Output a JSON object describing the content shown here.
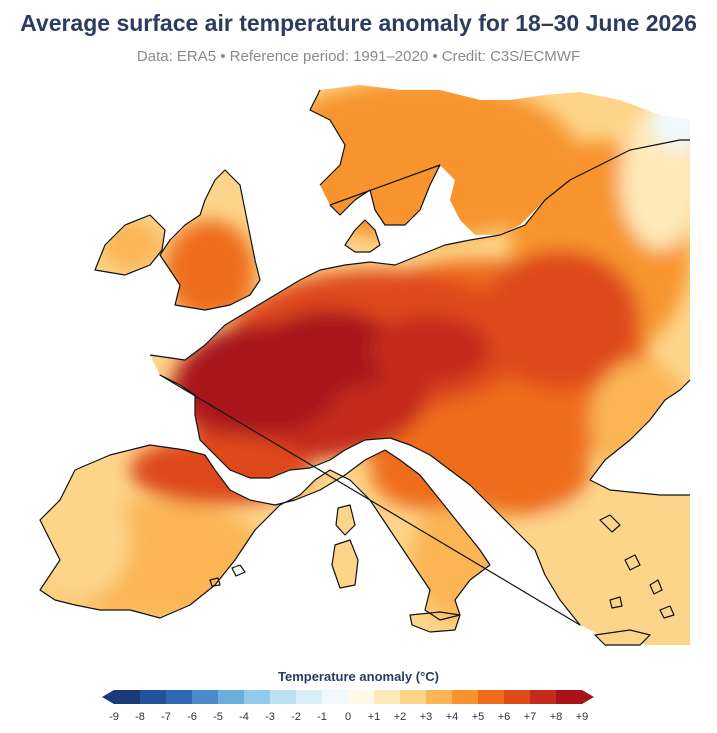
{
  "title": "Average surface air temperature anomaly for 18–30 June 2026",
  "subtitle": "Data: ERA5 • Reference period: 1991–2020 • Credit: C3S/ECMWF",
  "legend": {
    "title": "Temperature anomaly (°C)",
    "ticks": [
      "-9",
      "-8",
      "-7",
      "-6",
      "-5",
      "-4",
      "-3",
      "-2",
      "-1",
      "0",
      "+1",
      "+2",
      "+3",
      "+4",
      "+5",
      "+6",
      "+7",
      "+8",
      "+9"
    ],
    "colors": [
      "#1b3a7a",
      "#23519a",
      "#2f69b3",
      "#4a8ac8",
      "#6aaedb",
      "#92cbea",
      "#bde1f2",
      "#daeef8",
      "#f0f8fd",
      "#fff9ea",
      "#fee9b8",
      "#fdd58a",
      "#fbb555",
      "#f7942e",
      "#ee6d1d",
      "#de4a1a",
      "#c52a1c",
      "#a8141b"
    ]
  },
  "map": {
    "region": "Europe",
    "colors": {
      "sea": "#ffffff",
      "coast": "#111111",
      "anomaly_plus1": "#fee9b8",
      "anomaly_plus2": "#fdd58a",
      "anomaly_plus3": "#fbb555",
      "anomaly_plus4": "#f7942e",
      "anomaly_plus5": "#ee6d1d",
      "anomaly_plus6": "#de4a1a",
      "anomaly_plus7": "#c52a1c",
      "anomaly_plus8": "#a8141b",
      "anomaly_zero": "#fff9ea",
      "anomaly_minus1": "#f0f8fd"
    }
  }
}
